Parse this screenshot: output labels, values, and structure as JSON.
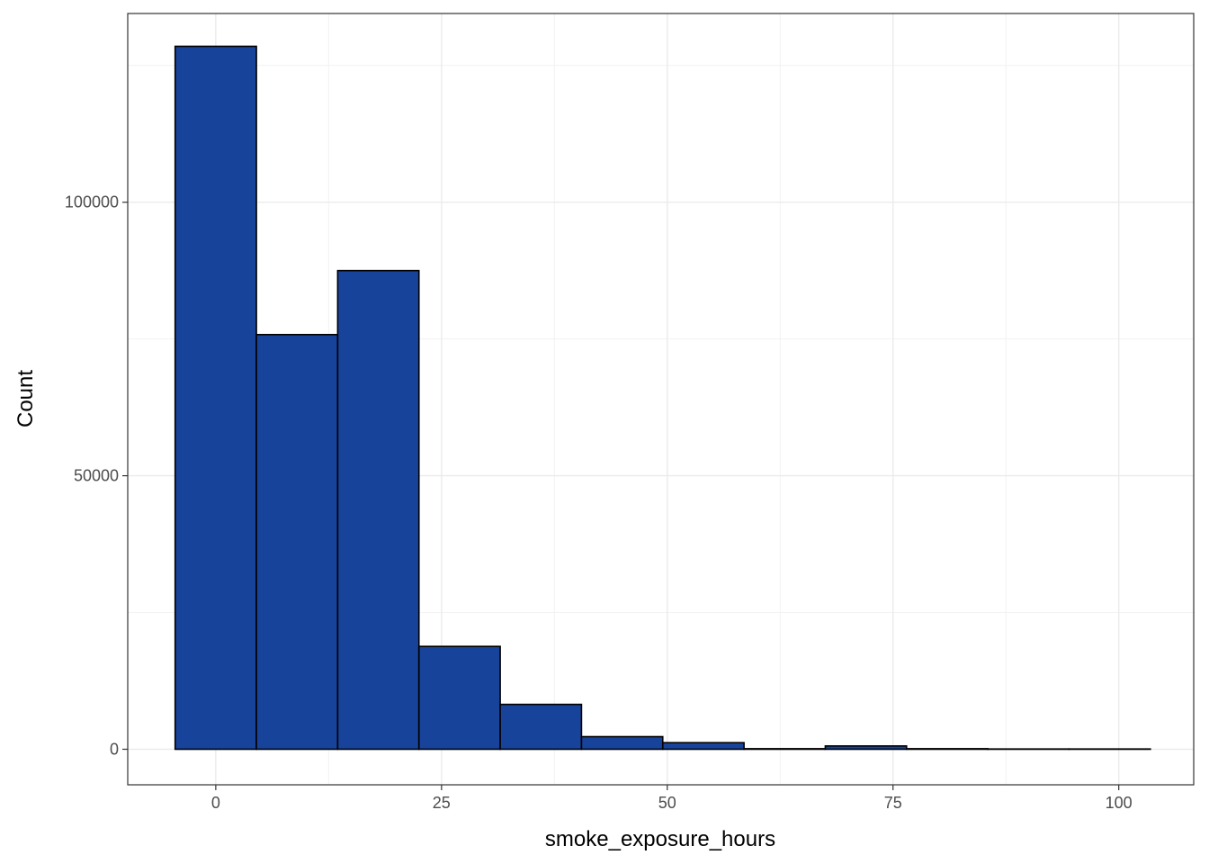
{
  "chart_data": {
    "type": "bar",
    "subtype": "histogram",
    "title": "",
    "xlabel": "smoke_exposure_hours",
    "ylabel": "Count",
    "xlim": [
      -9.75,
      108.3
    ],
    "ylim": [
      -6500,
      134500
    ],
    "x_ticks": [
      0,
      25,
      50,
      75,
      100
    ],
    "x_tick_labels": [
      "0",
      "25",
      "50",
      "75",
      "100"
    ],
    "y_ticks": [
      0,
      50000,
      100000
    ],
    "y_tick_labels": [
      "0",
      "50000",
      "100000"
    ],
    "x_minor_gridlines": [
      12.5,
      37.5,
      62.5,
      87.5
    ],
    "y_minor_gridlines": [
      25000,
      75000,
      125000
    ],
    "bins": [
      {
        "x0": -4.5,
        "x1": 4.5,
        "count": 128500
      },
      {
        "x0": 4.5,
        "x1": 13.5,
        "count": 75800
      },
      {
        "x0": 13.5,
        "x1": 22.5,
        "count": 87500
      },
      {
        "x0": 22.5,
        "x1": 31.5,
        "count": 18800
      },
      {
        "x0": 31.5,
        "x1": 40.5,
        "count": 8200
      },
      {
        "x0": 40.5,
        "x1": 49.5,
        "count": 2300
      },
      {
        "x0": 49.5,
        "x1": 58.5,
        "count": 1200
      },
      {
        "x0": 58.5,
        "x1": 67.5,
        "count": 100
      },
      {
        "x0": 67.5,
        "x1": 76.5,
        "count": 600
      },
      {
        "x0": 76.5,
        "x1": 85.5,
        "count": 100
      },
      {
        "x0": 85.5,
        "x1": 94.5,
        "count": 50
      },
      {
        "x0": 94.5,
        "x1": 103.5,
        "count": 50
      }
    ],
    "bar_fill": "#18439a",
    "bar_stroke": "#000000",
    "grid": true,
    "legend": "none"
  }
}
